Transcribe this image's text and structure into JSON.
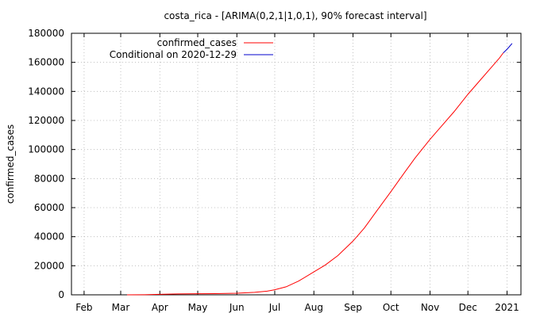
{
  "chart_data": {
    "type": "line",
    "title": "costa_rica -  [ARIMA(0,2,1|1,0,1), 90% forecast interval]",
    "xlabel": "",
    "ylabel": "confirmed_cases",
    "xlim": [
      "2020-01-22",
      "2021-01-12"
    ],
    "ylim": [
      0,
      180000
    ],
    "yticks": [
      0,
      20000,
      40000,
      60000,
      80000,
      100000,
      120000,
      140000,
      160000,
      180000
    ],
    "xticks": [
      {
        "date": "2020-02-01",
        "label": "Feb"
      },
      {
        "date": "2020-03-01",
        "label": "Mar"
      },
      {
        "date": "2020-04-01",
        "label": "Apr"
      },
      {
        "date": "2020-05-01",
        "label": "May"
      },
      {
        "date": "2020-06-01",
        "label": "Jun"
      },
      {
        "date": "2020-07-01",
        "label": "Jul"
      },
      {
        "date": "2020-08-01",
        "label": "Aug"
      },
      {
        "date": "2020-09-01",
        "label": "Sep"
      },
      {
        "date": "2020-10-01",
        "label": "Oct"
      },
      {
        "date": "2020-11-01",
        "label": "Nov"
      },
      {
        "date": "2020-12-01",
        "label": "Dec"
      },
      {
        "date": "2021-01-01",
        "label": "2021"
      }
    ],
    "grid": true,
    "legend_position": "top-left",
    "series": [
      {
        "name": "confirmed_cases",
        "color": "#ff0000",
        "points": [
          [
            "2020-03-06",
            0
          ],
          [
            "2020-03-20",
            100
          ],
          [
            "2020-04-01",
            350
          ],
          [
            "2020-04-15",
            600
          ],
          [
            "2020-05-01",
            720
          ],
          [
            "2020-05-15",
            850
          ],
          [
            "2020-06-01",
            1100
          ],
          [
            "2020-06-15",
            1700
          ],
          [
            "2020-06-25",
            2500
          ],
          [
            "2020-07-01",
            3500
          ],
          [
            "2020-07-10",
            5500
          ],
          [
            "2020-07-20",
            9500
          ],
          [
            "2020-08-01",
            15800
          ],
          [
            "2020-08-10",
            20500
          ],
          [
            "2020-08-20",
            27000
          ],
          [
            "2020-09-01",
            37000
          ],
          [
            "2020-09-10",
            46000
          ],
          [
            "2020-09-20",
            58000
          ],
          [
            "2020-10-01",
            71000
          ],
          [
            "2020-10-10",
            82000
          ],
          [
            "2020-10-20",
            94000
          ],
          [
            "2020-11-01",
            107000
          ],
          [
            "2020-11-10",
            116000
          ],
          [
            "2020-11-20",
            126000
          ],
          [
            "2020-12-01",
            138000
          ],
          [
            "2020-12-10",
            147000
          ],
          [
            "2020-12-20",
            157000
          ],
          [
            "2020-12-23",
            160000
          ],
          [
            "2020-12-26",
            163000
          ],
          [
            "2020-12-29",
            166500
          ]
        ]
      },
      {
        "name": "Conditional on 2020-12-29",
        "color": "#0000cc",
        "points": [
          [
            "2020-12-29",
            166500
          ],
          [
            "2021-01-01",
            169000
          ],
          [
            "2021-01-03",
            171000
          ],
          [
            "2021-01-05",
            173000
          ]
        ]
      }
    ]
  }
}
